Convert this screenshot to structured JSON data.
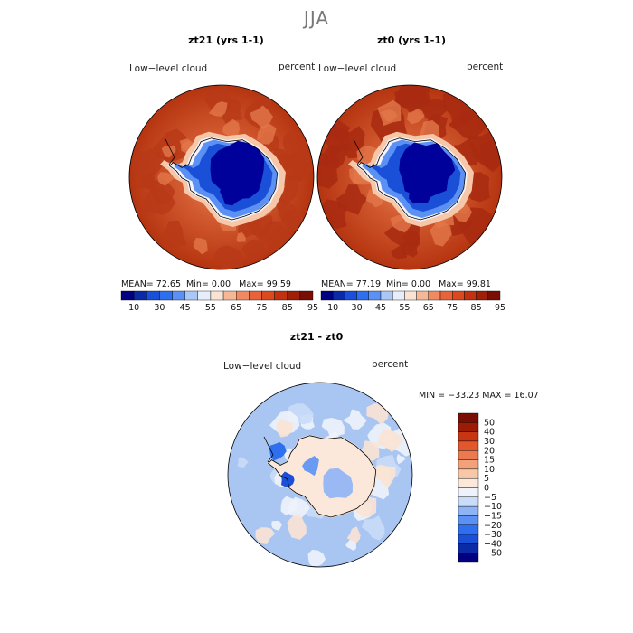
{
  "suptitle": "JJA",
  "colors": {
    "abs_scale": [
      "#000080",
      "#0a2aa8",
      "#1a4fd8",
      "#2e6ff0",
      "#5b91f5",
      "#a9c8f7",
      "#e6eefb",
      "#fbe3d4",
      "#f5b795",
      "#ef8a63",
      "#e8633a",
      "#db4a1f",
      "#c23210",
      "#a01f08",
      "#7a0e04"
    ],
    "diff_scale": [
      "#000080",
      "#0a2aa8",
      "#1a4fd8",
      "#2e6ff0",
      "#5b91f5",
      "#8fb4f6",
      "#c9dcf8",
      "#eef3fb",
      "#fbe8da",
      "#f7c8a8",
      "#f2a17a",
      "#ec7a4e",
      "#e2572b",
      "#c83512",
      "#9c1c06",
      "#7a0e04"
    ],
    "ocean_high": "#c84a28",
    "ocean_dark": "#a82a10",
    "ice_core": "#00009a",
    "diff_ocean": "#a9c6f2",
    "diff_land": "#fbe8da"
  },
  "panels": [
    {
      "title": "zt21 (yrs 1-1)",
      "variable": "Low−level cloud",
      "units": "percent",
      "stats": {
        "mean_label": "MEAN=",
        "mean": "72.65",
        "min_label": "Min=",
        "min": "0.00",
        "max_label": "Max=",
        "max": "99.59"
      }
    },
    {
      "title": "zt0 (yrs 1-1)",
      "variable": "Low−level cloud",
      "units": "percent",
      "stats": {
        "mean_label": "MEAN=",
        "mean": "77.19",
        "min_label": "Min=",
        "min": "0.00",
        "max_label": "Max=",
        "max": "99.81"
      }
    }
  ],
  "diff_panel": {
    "title": "zt21 - zt0",
    "variable": "Low−level cloud",
    "units": "percent",
    "minmax_text": "MIN = −33.23 MAX =   16.07"
  },
  "chart_data": [
    {
      "type": "heatmap",
      "title": "zt21 (yrs 1-1)",
      "projection": "south polar stereographic",
      "variable": "Low-level cloud",
      "units": "percent",
      "mean": 72.65,
      "min": 0.0,
      "max": 99.59,
      "colorbar_ticks": [
        "10",
        "30",
        "45",
        "55",
        "65",
        "75",
        "85",
        "95"
      ]
    },
    {
      "type": "heatmap",
      "title": "zt0 (yrs 1-1)",
      "projection": "south polar stereographic",
      "variable": "Low-level cloud",
      "units": "percent",
      "mean": 77.19,
      "min": 0.0,
      "max": 99.81,
      "colorbar_ticks": [
        "10",
        "30",
        "45",
        "55",
        "65",
        "75",
        "85",
        "95"
      ]
    },
    {
      "type": "heatmap",
      "title": "zt21 - zt0",
      "projection": "south polar stereographic",
      "variable": "Low-level cloud",
      "units": "percent",
      "min": -33.23,
      "max": 16.07,
      "colorbar_ticks": [
        "50",
        "40",
        "30",
        "20",
        "15",
        "10",
        "5",
        "0",
        "−5",
        "−10",
        "−15",
        "−20",
        "−30",
        "−40",
        "−50"
      ]
    }
  ]
}
